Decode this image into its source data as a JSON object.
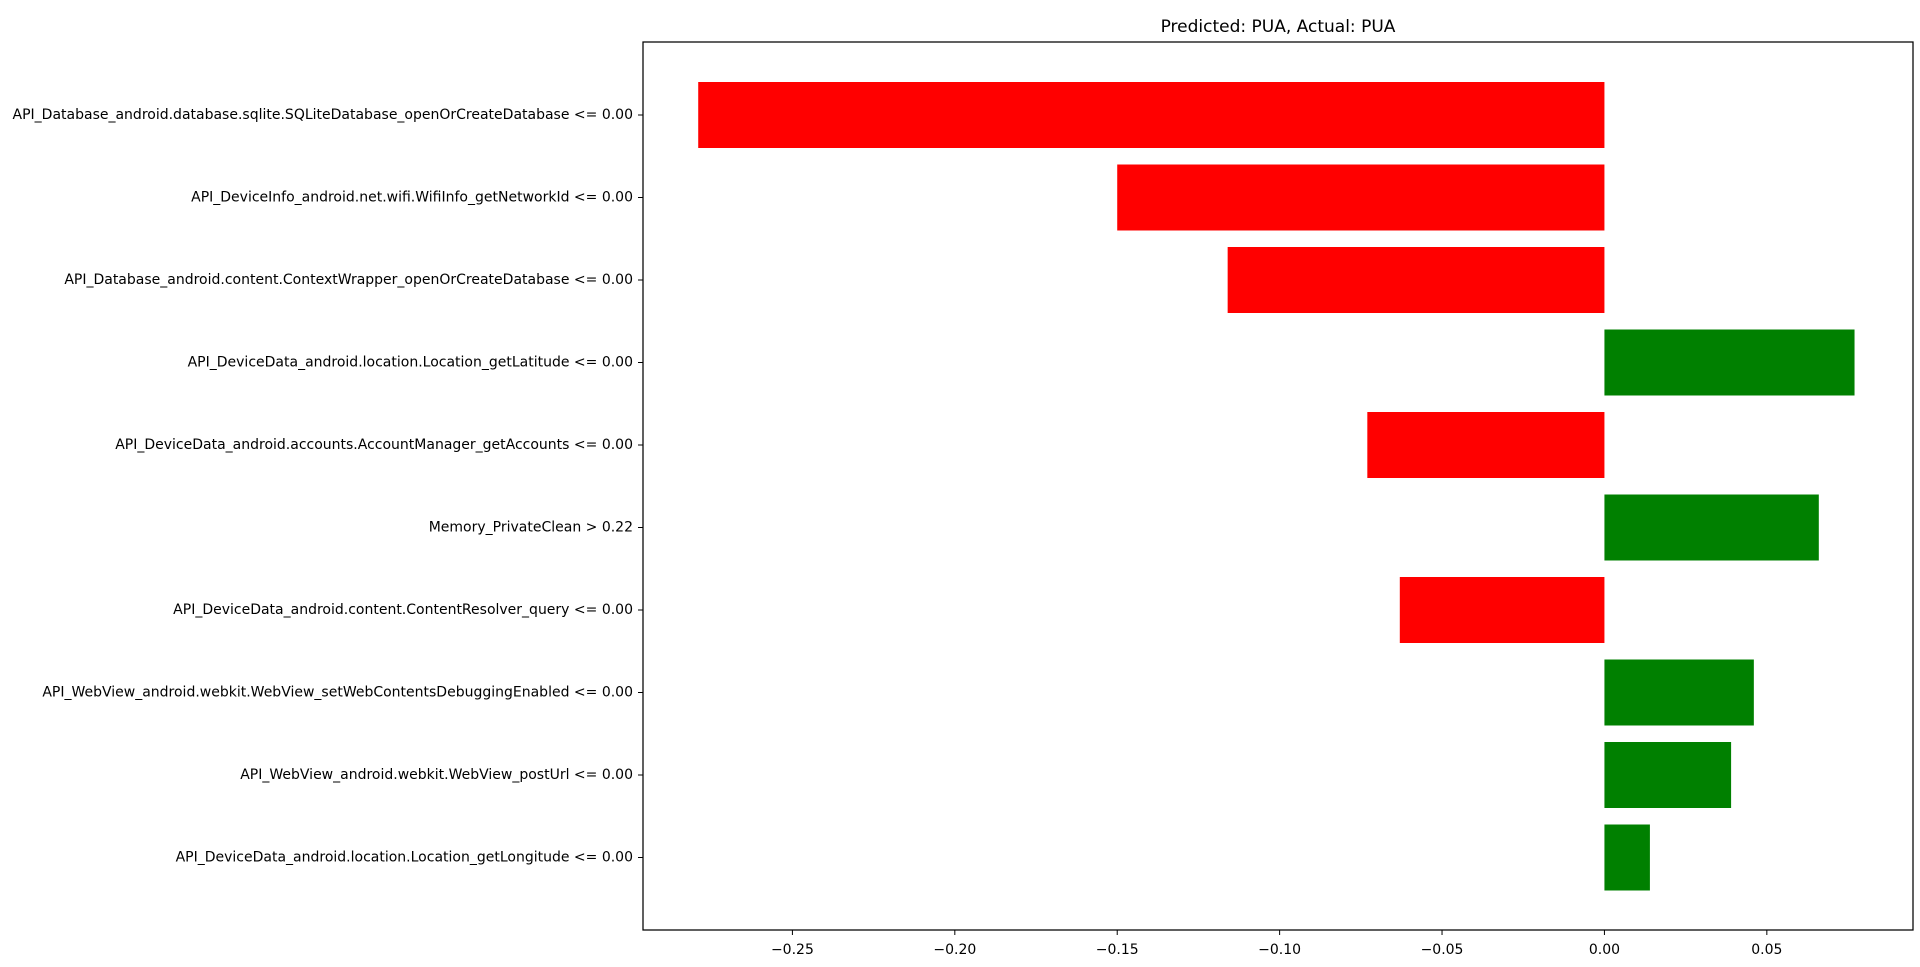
{
  "chart_data": {
    "type": "bar",
    "orientation": "horizontal",
    "title": "Predicted: PUA, Actual: PUA",
    "xlabel": "",
    "ylabel": "",
    "xlim": [
      -0.296,
      0.095
    ],
    "grid": false,
    "legend": "none",
    "colors": {
      "negative": "#ff0000",
      "positive": "#008000"
    },
    "x_ticks": [
      {
        "value": -0.25,
        "label": "−0.25"
      },
      {
        "value": -0.2,
        "label": "−0.20"
      },
      {
        "value": -0.15,
        "label": "−0.15"
      },
      {
        "value": -0.1,
        "label": "−0.10"
      },
      {
        "value": -0.05,
        "label": "−0.05"
      },
      {
        "value": 0.0,
        "label": "0.00"
      },
      {
        "value": 0.05,
        "label": "0.05"
      }
    ],
    "categories": [
      "API_Database_android.database.sqlite.SQLiteDatabase_openOrCreateDatabase <= 0.00",
      "API_DeviceInfo_android.net.wifi.WifiInfo_getNetworkId <= 0.00",
      "API_Database_android.content.ContextWrapper_openOrCreateDatabase <= 0.00",
      "API_DeviceData_android.location.Location_getLatitude <= 0.00",
      "API_DeviceData_android.accounts.AccountManager_getAccounts <= 0.00",
      "Memory_PrivateClean > 0.22",
      "API_DeviceData_android.content.ContentResolver_query <= 0.00",
      "API_WebView_android.webkit.WebView_setWebContentsDebuggingEnabled <= 0.00",
      "API_WebView_android.webkit.WebView_postUrl <= 0.00",
      "API_DeviceData_android.location.Location_getLongitude <= 0.00"
    ],
    "values": [
      -0.279,
      -0.15,
      -0.116,
      0.077,
      -0.073,
      0.066,
      -0.063,
      0.046,
      0.039,
      0.014
    ]
  }
}
